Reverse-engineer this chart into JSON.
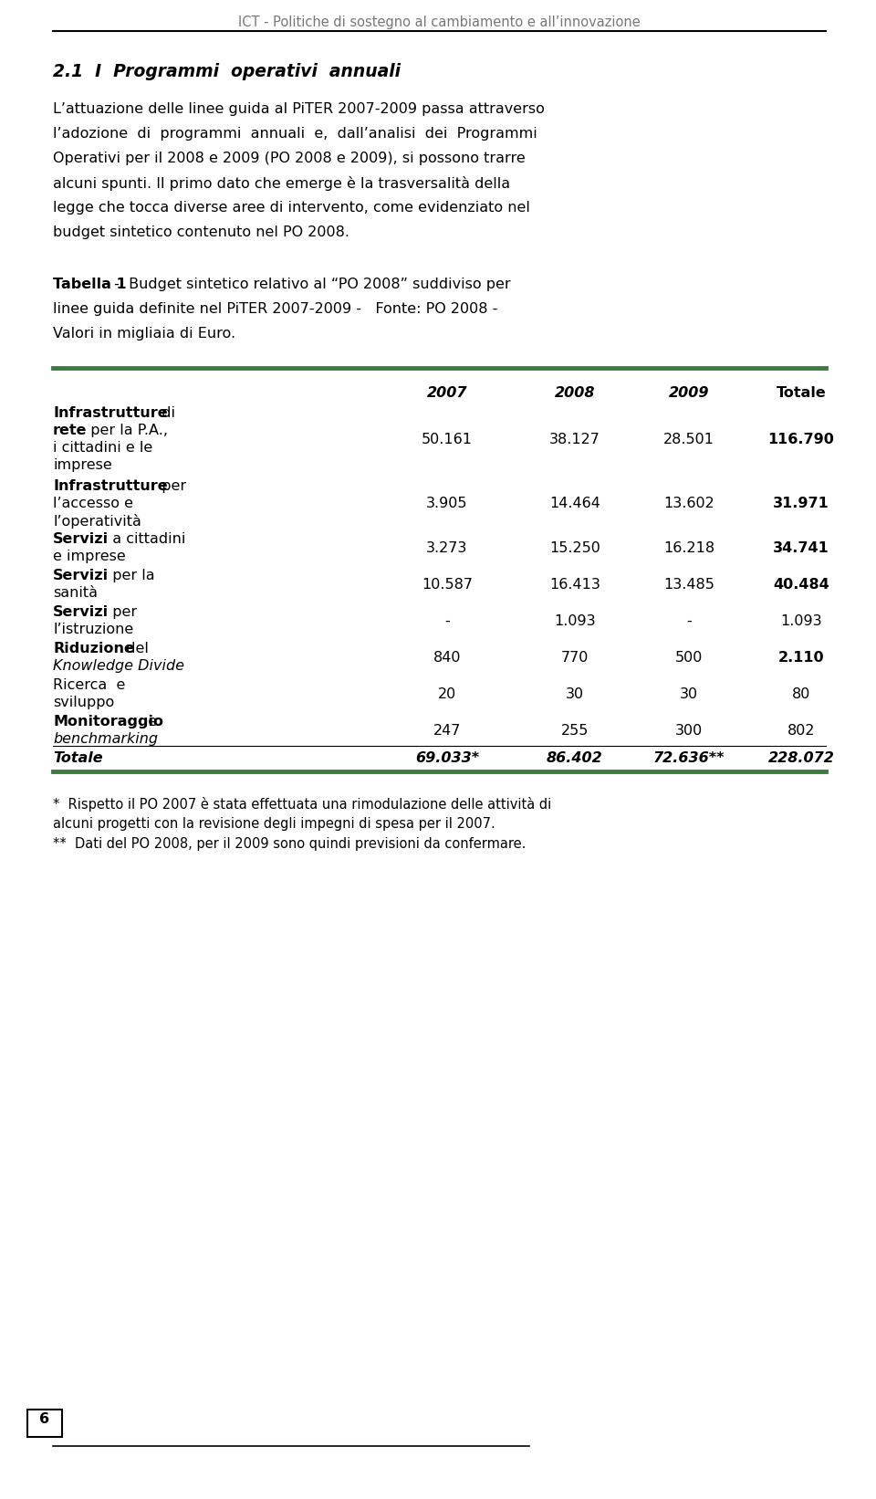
{
  "header_text": "ICT - Politiche di sostegno al cambiamento e all’innovazione",
  "section_title": "2.1  I  Programmi  operativi  annuali",
  "col_headers": [
    "2007",
    "2008",
    "2009",
    "Totale"
  ],
  "rows": [
    {
      "label_lines": [
        "Infrastrutture  di",
        "rete  per la P.A.,",
        "i cittadini e le",
        "imprese"
      ],
      "bold_line_indices": [
        0,
        1
      ],
      "bold_line_first_word_only": [
        true,
        true
      ],
      "values": [
        "50.161",
        "38.127",
        "28.501",
        "116.790"
      ],
      "val_bold": [
        false,
        false,
        false,
        true
      ],
      "is_total": false
    },
    {
      "label_lines": [
        "Infrastrutture  per",
        "l’accesso e",
        "l’operatività"
      ],
      "bold_line_indices": [
        0
      ],
      "bold_line_first_word_only": [
        true
      ],
      "values": [
        "3.905",
        "14.464",
        "13.602",
        "31.971"
      ],
      "val_bold": [
        false,
        false,
        false,
        true
      ],
      "is_total": false
    },
    {
      "label_lines": [
        "Servizi  a cittadini",
        "e imprese"
      ],
      "bold_line_indices": [
        0
      ],
      "bold_line_first_word_only": [
        true
      ],
      "values": [
        "3.273",
        "15.250",
        "16.218",
        "34.741"
      ],
      "val_bold": [
        false,
        false,
        false,
        true
      ],
      "is_total": false
    },
    {
      "label_lines": [
        "Servizi  per la",
        "sanità"
      ],
      "bold_line_indices": [
        0
      ],
      "bold_line_first_word_only": [
        true
      ],
      "values": [
        "10.587",
        "16.413",
        "13.485",
        "40.484"
      ],
      "val_bold": [
        false,
        false,
        false,
        true
      ],
      "is_total": false
    },
    {
      "label_lines": [
        "Servizi  per",
        "l’istruzione"
      ],
      "bold_line_indices": [
        0
      ],
      "bold_line_first_word_only": [
        true
      ],
      "values": [
        "-",
        "1.093",
        "-",
        "1.093"
      ],
      "val_bold": [
        false,
        false,
        false,
        false
      ],
      "is_total": false
    },
    {
      "label_lines": [
        "Riduzione  del",
        "Knowledge Divide"
      ],
      "bold_line_indices": [
        0
      ],
      "bold_line_first_word_only": [
        true
      ],
      "italic_line_indices": [
        1
      ],
      "values": [
        "840",
        "770",
        "500",
        "2.110"
      ],
      "val_bold": [
        false,
        false,
        false,
        true
      ],
      "is_total": false
    },
    {
      "label_lines": [
        "Ricerca  e",
        "sviluppo"
      ],
      "bold_line_indices": [],
      "bold_line_first_word_only": [],
      "values": [
        "20",
        "30",
        "30",
        "80"
      ],
      "val_bold": [
        false,
        false,
        false,
        false
      ],
      "is_total": false
    },
    {
      "label_lines": [
        "Monitoraggio  e",
        "benchmarking"
      ],
      "bold_line_indices": [
        0
      ],
      "bold_line_first_word_only": [
        true
      ],
      "italic_line_indices": [
        1
      ],
      "values": [
        "247",
        "255",
        "300",
        "802"
      ],
      "val_bold": [
        false,
        false,
        false,
        false
      ],
      "is_total": false
    },
    {
      "label_lines": [
        "Totale"
      ],
      "bold_line_indices": [
        0
      ],
      "bold_line_first_word_only": [
        false
      ],
      "italic_line_indices": [
        0
      ],
      "values": [
        "69.033*",
        "86.402",
        "72.636**",
        "228.072"
      ],
      "val_bold": [
        true,
        true,
        true,
        true
      ],
      "is_total": true
    }
  ],
  "footnote_lines": [
    "*  Rispetto il PO 2007 è stata effettuata una rimodulazione delle attività di",
    "alcuni progetti con la revisione degli impegni di spesa per il 2007.",
    "**  Dati del PO 2008, per il 2009 sono quindi previsioni da confermare."
  ],
  "page_number": "6",
  "green_color": "#3d7a3d",
  "bg_color": "#ffffff",
  "text_color": "#000000"
}
